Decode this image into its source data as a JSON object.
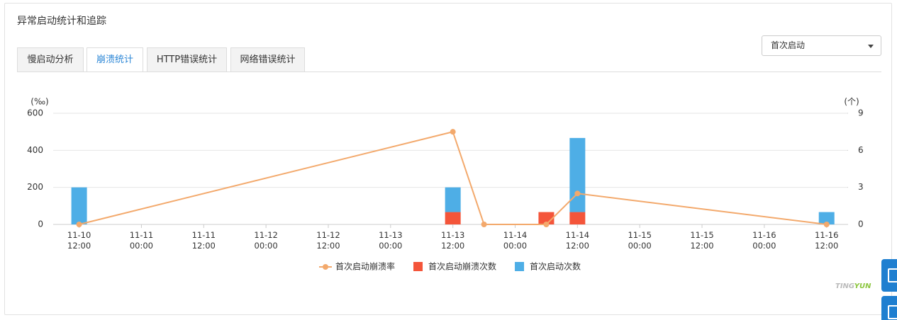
{
  "header": {
    "title": "异常启动统计和追踪"
  },
  "tabs": {
    "items": [
      "慢启动分析",
      "崩溃统计",
      "HTTP错误统计",
      "网络错误统计"
    ],
    "active": 1
  },
  "dropdown": {
    "value": "首次启动"
  },
  "watermark": [
    "TING",
    "YUN"
  ],
  "chart_data": {
    "type": "bar",
    "stacked": true,
    "grid": true,
    "legend": "bottom",
    "ylabel": "(‰)",
    "y2label": "(个)",
    "x": [
      "11-10 12:00",
      "11-13 12:00",
      "11-13 18:00",
      "11-14 06:00",
      "11-14 12:00",
      "11-16 12:00"
    ],
    "xlim": [
      "11-10 07:00",
      "11-16 16:00"
    ],
    "xticks": [
      "11-10 12:00",
      "11-11 00:00",
      "11-11 12:00",
      "11-12 00:00",
      "11-12 12:00",
      "11-13 00:00",
      "11-13 12:00",
      "11-14 00:00",
      "11-14 12:00",
      "11-15 00:00",
      "11-15 12:00",
      "11-16 00:00",
      "11-16 12:00"
    ],
    "ylim": [
      0,
      600
    ],
    "yticks": [
      0,
      200,
      400,
      600
    ],
    "y2lim": [
      0,
      9
    ],
    "y2ticks": [
      0,
      3,
      6,
      9
    ],
    "series": [
      {
        "name": "首次启动崩溃率",
        "type": "line",
        "color": "#f3a96c",
        "values": [
          0,
          500,
          0,
          0,
          167,
          0
        ]
      },
      {
        "name": "首次启动崩溃次数",
        "type": "bar",
        "axis": "y2",
        "color": "#f4553a",
        "values": [
          0,
          1,
          0,
          1,
          1,
          0
        ]
      },
      {
        "name": "首次启动次数",
        "type": "bar",
        "axis": "y2",
        "color": "#4eaee6",
        "values": [
          3,
          2,
          0,
          0,
          6,
          1
        ]
      }
    ]
  }
}
